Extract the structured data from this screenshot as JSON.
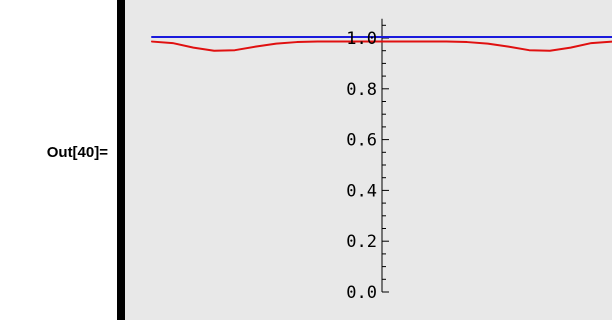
{
  "cell": {
    "out_label": "Out[40]="
  },
  "chart_data": {
    "type": "line",
    "title": "",
    "xlabel": "",
    "ylabel": "",
    "ylim": [
      0,
      1.06
    ],
    "xlim": [
      -2,
      2.26
    ],
    "y_ticks": [
      {
        "value": 0.0,
        "label": "0.0"
      },
      {
        "value": 0.2,
        "label": "0.2"
      },
      {
        "value": 0.4,
        "label": "0.4"
      },
      {
        "value": 0.6,
        "label": "0.6"
      },
      {
        "value": 0.8,
        "label": "0.8"
      },
      {
        "value": 1.0,
        "label": "1.0"
      }
    ],
    "grid": false,
    "series": [
      {
        "color": "#1a1adc",
        "x": [
          -2,
          2.26
        ],
        "y": [
          1.004,
          1.004
        ]
      },
      {
        "color": "#e01010",
        "x": [
          -2,
          -1.82,
          -1.64,
          -1.46,
          -1.28,
          -1.1,
          -0.92,
          -0.74,
          -0.56,
          -0.38,
          -0.2,
          0.0,
          0.2,
          0.38,
          0.56,
          0.74,
          0.92,
          1.1,
          1.28,
          1.46,
          1.64,
          1.82,
          2.0,
          2.26
        ],
        "y": [
          0.986,
          0.98,
          0.962,
          0.95,
          0.952,
          0.966,
          0.978,
          0.984,
          0.986,
          0.986,
          0.986,
          0.986,
          0.986,
          0.986,
          0.986,
          0.984,
          0.978,
          0.966,
          0.952,
          0.95,
          0.962,
          0.98,
          0.986,
          0.986
        ]
      }
    ]
  }
}
